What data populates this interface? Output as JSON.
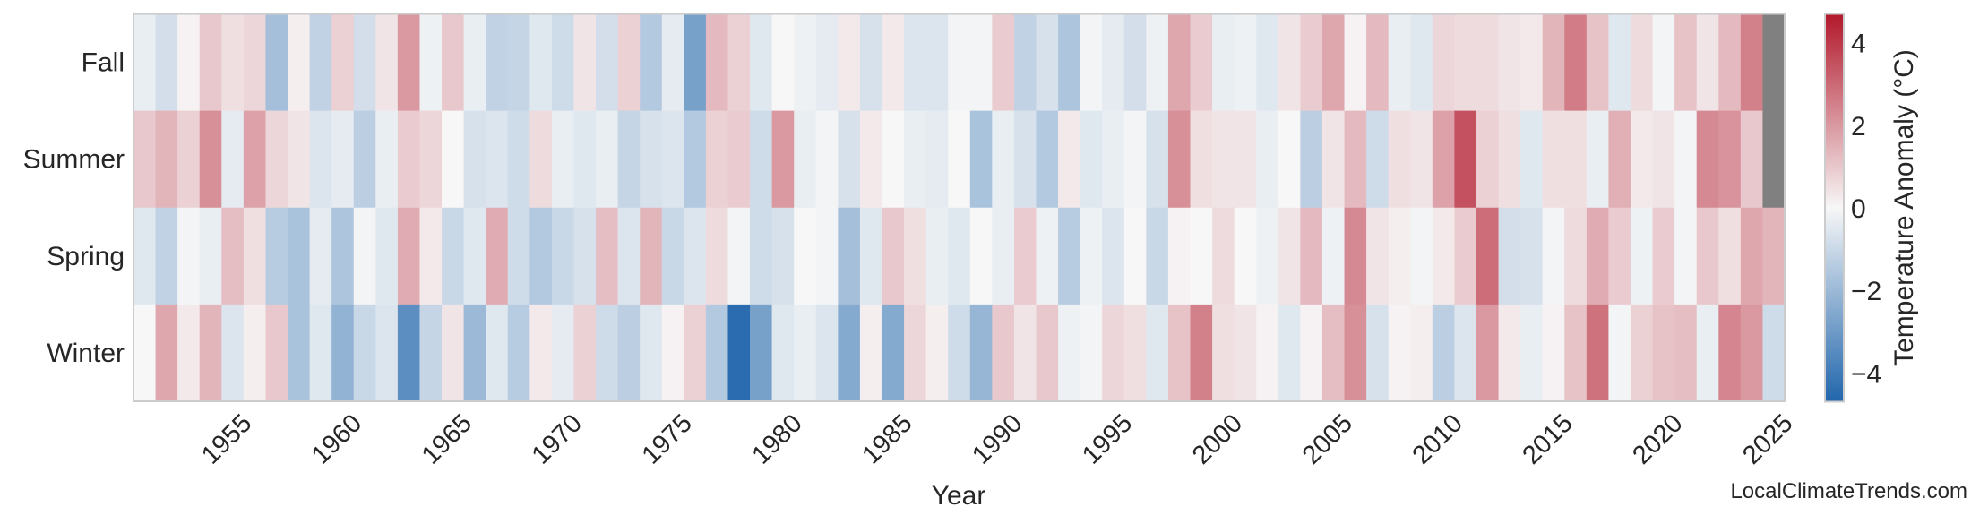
{
  "chart_data": {
    "type": "heatmap",
    "xlabel": "Year",
    "x": [
      1951,
      1952,
      1953,
      1954,
      1955,
      1956,
      1957,
      1958,
      1959,
      1960,
      1961,
      1962,
      1963,
      1964,
      1965,
      1966,
      1967,
      1968,
      1969,
      1970,
      1971,
      1972,
      1973,
      1974,
      1975,
      1976,
      1977,
      1978,
      1979,
      1980,
      1981,
      1982,
      1983,
      1984,
      1985,
      1986,
      1987,
      1988,
      1989,
      1990,
      1991,
      1992,
      1993,
      1994,
      1995,
      1996,
      1997,
      1998,
      1999,
      2000,
      2001,
      2002,
      2003,
      2004,
      2005,
      2006,
      2007,
      2008,
      2009,
      2010,
      2011,
      2012,
      2013,
      2014,
      2015,
      2016,
      2017,
      2018,
      2019,
      2020,
      2021,
      2022,
      2023,
      2024,
      2025
    ],
    "x_tick_labels": [
      "1955",
      "1960",
      "1965",
      "1970",
      "1975",
      "1980",
      "1985",
      "1990",
      "1995",
      "2000",
      "2005",
      "2010",
      "2015",
      "2020",
      "2025"
    ],
    "y_categories": [
      "Fall",
      "Summer",
      "Spring",
      "Winter"
    ],
    "values": {
      "Fall": [
        -0.3,
        -0.8,
        0.1,
        1.0,
        0.5,
        0.7,
        -1.8,
        0.2,
        -1.2,
        0.8,
        -0.8,
        0.4,
        2.0,
        -0.2,
        1.0,
        -0.3,
        -1.2,
        -1.1,
        -0.5,
        -0.9,
        0.4,
        -0.8,
        0.8,
        -1.5,
        -0.4,
        -2.8,
        1.3,
        0.8,
        -0.5,
        0.0,
        -0.2,
        -0.4,
        0.3,
        -0.7,
        0.3,
        -0.6,
        -0.6,
        -0.1,
        -0.1,
        0.9,
        -1.2,
        -0.7,
        -1.6,
        -0.1,
        -0.4,
        -0.8,
        -0.2,
        1.7,
        0.9,
        -0.3,
        -0.2,
        -0.5,
        0.4,
        0.9,
        1.7,
        0.1,
        1.3,
        -0.3,
        -0.5,
        0.7,
        0.6,
        0.6,
        0.4,
        0.3,
        1.4,
        2.6,
        1.1,
        -0.5,
        0.6,
        -0.1,
        1.1,
        0.4,
        1.3,
        2.5,
        null
      ],
      "Summer": [
        1.0,
        1.4,
        0.8,
        2.2,
        -0.4,
        1.8,
        0.7,
        0.4,
        -0.6,
        -0.4,
        -1.3,
        -0.3,
        0.9,
        0.7,
        0.0,
        -0.7,
        -0.6,
        -0.9,
        0.6,
        -0.3,
        -0.5,
        -0.3,
        -1.1,
        -0.7,
        -0.6,
        -1.5,
        0.8,
        0.9,
        -0.9,
        2.0,
        -0.3,
        -0.1,
        -0.7,
        0.3,
        0.0,
        -0.3,
        -0.4,
        0.0,
        -1.7,
        -0.3,
        -0.7,
        -1.5,
        0.3,
        -0.5,
        -0.3,
        -0.1,
        -0.7,
        2.2,
        0.5,
        0.4,
        0.4,
        -0.3,
        0.0,
        -1.3,
        0.4,
        1.3,
        -0.9,
        0.5,
        0.4,
        1.8,
        3.5,
        0.8,
        0.5,
        -0.5,
        0.5,
        0.5,
        -0.3,
        1.5,
        0.3,
        0.4,
        -0.1,
        2.3,
        2.1,
        1.0,
        null
      ],
      "Spring": [
        -0.5,
        -1.2,
        -0.1,
        -0.3,
        1.2,
        0.5,
        -1.4,
        -1.7,
        -0.4,
        -1.6,
        -0.1,
        -0.5,
        1.6,
        0.3,
        -1.0,
        -0.5,
        1.6,
        -0.9,
        -1.5,
        -1.0,
        -0.7,
        1.2,
        -0.6,
        1.4,
        -1.0,
        -0.6,
        0.6,
        -0.1,
        -0.9,
        -0.7,
        0.0,
        -0.1,
        -1.8,
        -0.5,
        1.0,
        0.5,
        -0.3,
        -0.5,
        0.0,
        -0.3,
        0.9,
        -0.2,
        -1.4,
        -0.2,
        -0.6,
        0.0,
        -1.0,
        0.1,
        0.0,
        0.6,
        0.0,
        -0.2,
        0.4,
        1.3,
        -0.2,
        2.3,
        0.4,
        0.2,
        -0.1,
        0.3,
        0.9,
        2.9,
        -0.8,
        -0.7,
        -0.1,
        0.6,
        1.6,
        0.9,
        -0.2,
        0.9,
        -0.1,
        1.0,
        0.5,
        1.7,
        1.4
      ],
      "Winter": [
        0.0,
        1.7,
        0.3,
        1.4,
        -0.6,
        0.2,
        1.0,
        -1.7,
        -0.5,
        -2.2,
        -1.0,
        -0.6,
        -3.4,
        -1.1,
        0.4,
        -2.0,
        -0.5,
        -1.4,
        0.3,
        -0.4,
        0.8,
        -0.9,
        -1.3,
        -0.5,
        0.1,
        0.8,
        -1.5,
        -4.5,
        -2.8,
        -0.5,
        -0.3,
        -0.6,
        -2.5,
        0.2,
        -2.5,
        0.7,
        0.2,
        -0.9,
        -2.1,
        1.0,
        0.4,
        1.0,
        -0.2,
        -0.1,
        0.7,
        0.5,
        -0.5,
        1.1,
        2.5,
        0.5,
        0.4,
        0.1,
        -0.5,
        0.1,
        1.2,
        2.2,
        -0.7,
        0.1,
        0.2,
        -1.3,
        -0.6,
        2.0,
        0.3,
        -0.3,
        0.1,
        1.1,
        2.8,
        -0.1,
        0.8,
        1.1,
        1.2,
        -0.3,
        2.4,
        2.0,
        -0.9
      ]
    },
    "colorbar": {
      "label": "Temperature Anomaly (°C)",
      "ticks": [
        4,
        2,
        0,
        -2,
        -4
      ],
      "tick_labels": [
        "4",
        "2",
        "0",
        "−2",
        "−4"
      ],
      "range": [
        -4.7,
        4.7
      ],
      "colors": {
        "low": "#2166ac",
        "mid": "#f7f7f7",
        "high": "#b2182b"
      }
    },
    "missing_color": "#808080",
    "grid": false
  },
  "watermark": "LocalClimateTrends.com"
}
